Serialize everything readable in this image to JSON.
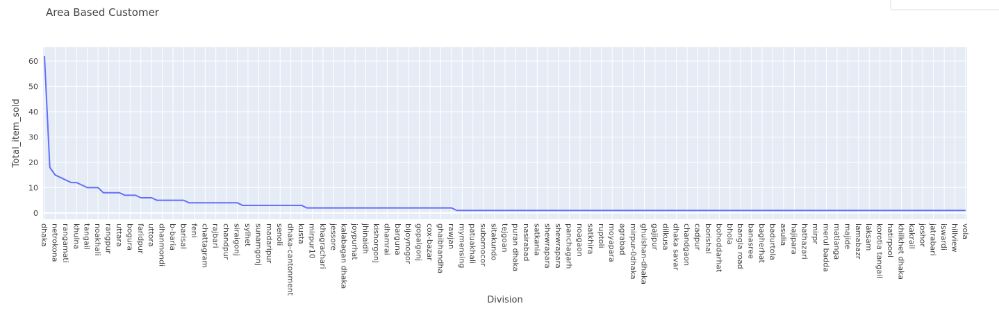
{
  "chart_data": {
    "type": "line",
    "title": "Area Based Customer",
    "x_label": "Division",
    "y_label": "Total_item_sold",
    "categories": [
      "dhaka",
      null,
      "netrokona",
      null,
      "rangamati",
      null,
      "khulna",
      null,
      "tangail",
      null,
      "noakhali",
      null,
      "rangpur",
      null,
      "uttara",
      null,
      "bogura",
      null,
      "faridpur",
      null,
      "uttora",
      null,
      "dhanmondi",
      null,
      "b-baria",
      null,
      "barisal",
      null,
      "feni",
      null,
      "chattagram",
      null,
      "rajbari",
      null,
      "chandpur",
      null,
      "siraigonj",
      null,
      "sylhet",
      null,
      "sunamgonj",
      null,
      "madaripur",
      null,
      "senoli",
      null,
      "dhaka-cantonment",
      null,
      "kusta",
      null,
      "mirpur10",
      null,
      "khagrachari",
      null,
      "jessore",
      null,
      "kalabagan dhaka",
      null,
      "joypurhat",
      null,
      "jhinaidh",
      null,
      "kishorgonj",
      null,
      "dhamrai",
      null,
      "barguna",
      null,
      "bijoynogor",
      null,
      "gopalgonj",
      null,
      "cox-bazar",
      null,
      "ghaibhandha",
      null,
      "rawjan",
      null,
      "mymensing",
      null,
      "patuakhali",
      null,
      "subornocor",
      null,
      "sitakundo",
      null,
      "tejgoan",
      null,
      "puran dhaka",
      null,
      "nasirabad",
      null,
      "satkania",
      null,
      "shewrapara",
      null,
      "shewrapara",
      null,
      "panchagarh",
      null,
      "noagaon",
      null,
      "satkhira",
      null,
      "ruptoli",
      null,
      "moyapara",
      null,
      "agrabad",
      null,
      "mirpur-0dhaka",
      null,
      "ghulshan-dhaka",
      null,
      "gajipur",
      null,
      "dilkusa",
      null,
      "dhaka savar",
      null,
      "chandgaon",
      null,
      "cadpur",
      null,
      "borishal",
      null,
      "bohoddarhat",
      null,
      "bhola",
      null,
      "bangla road",
      null,
      "banasree",
      null,
      "bagherhat",
      null,
      "badurtola",
      null,
      "asulia",
      null,
      "hajipara",
      null,
      "hathazari",
      null,
      "mirpr",
      null,
      "merul badda",
      null,
      "matianga",
      null,
      "majide",
      null,
      "lamabazr",
      null,
      "laksam",
      null,
      "korotia tangail",
      null,
      "hatirpool",
      null,
      "khilkhet dhaka",
      null,
      "kakrail",
      null,
      "joshor",
      null,
      "jatrabari",
      null,
      "iswardi",
      null,
      "hillview",
      null,
      "vola"
    ],
    "values": [
      62,
      18,
      15,
      14,
      13,
      12,
      12,
      11,
      10,
      10,
      10,
      8,
      8,
      8,
      8,
      7,
      7,
      7,
      6,
      6,
      6,
      5,
      5,
      5,
      5,
      5,
      5,
      4,
      4,
      4,
      4,
      4,
      4,
      4,
      4,
      4,
      4,
      3,
      3,
      3,
      3,
      3,
      3,
      3,
      3,
      3,
      3,
      3,
      3,
      2,
      2,
      2,
      2,
      2,
      2,
      2,
      2,
      2,
      2,
      2,
      2,
      2,
      2,
      2,
      2,
      2,
      2,
      2,
      2,
      2,
      2,
      2,
      2,
      2,
      2,
      2,
      2,
      1,
      1,
      1,
      1,
      1,
      1,
      1,
      1,
      1,
      1,
      1,
      1,
      1,
      1,
      1,
      1,
      1,
      1,
      1,
      1,
      1,
      1,
      1,
      1,
      1,
      1,
      1,
      1,
      1,
      1,
      1,
      1,
      1,
      1,
      1,
      1,
      1,
      1,
      1,
      1,
      1,
      1,
      1,
      1,
      1,
      1,
      1,
      1,
      1,
      1,
      1,
      1,
      1,
      1,
      1,
      1,
      1,
      1,
      1,
      1,
      1,
      1,
      1,
      1,
      1,
      1,
      1,
      1,
      1,
      1,
      1,
      1,
      1,
      1,
      1,
      1,
      1,
      1,
      1,
      1,
      1,
      1,
      1,
      1,
      1,
      1,
      1,
      1,
      1,
      1,
      1,
      1,
      1,
      1,
      1,
      1
    ],
    "color": "#636efa",
    "ylim": [
      -2.5,
      65.5
    ],
    "yticks": [
      0,
      10,
      20,
      30,
      40,
      50,
      60
    ],
    "grid": true
  }
}
